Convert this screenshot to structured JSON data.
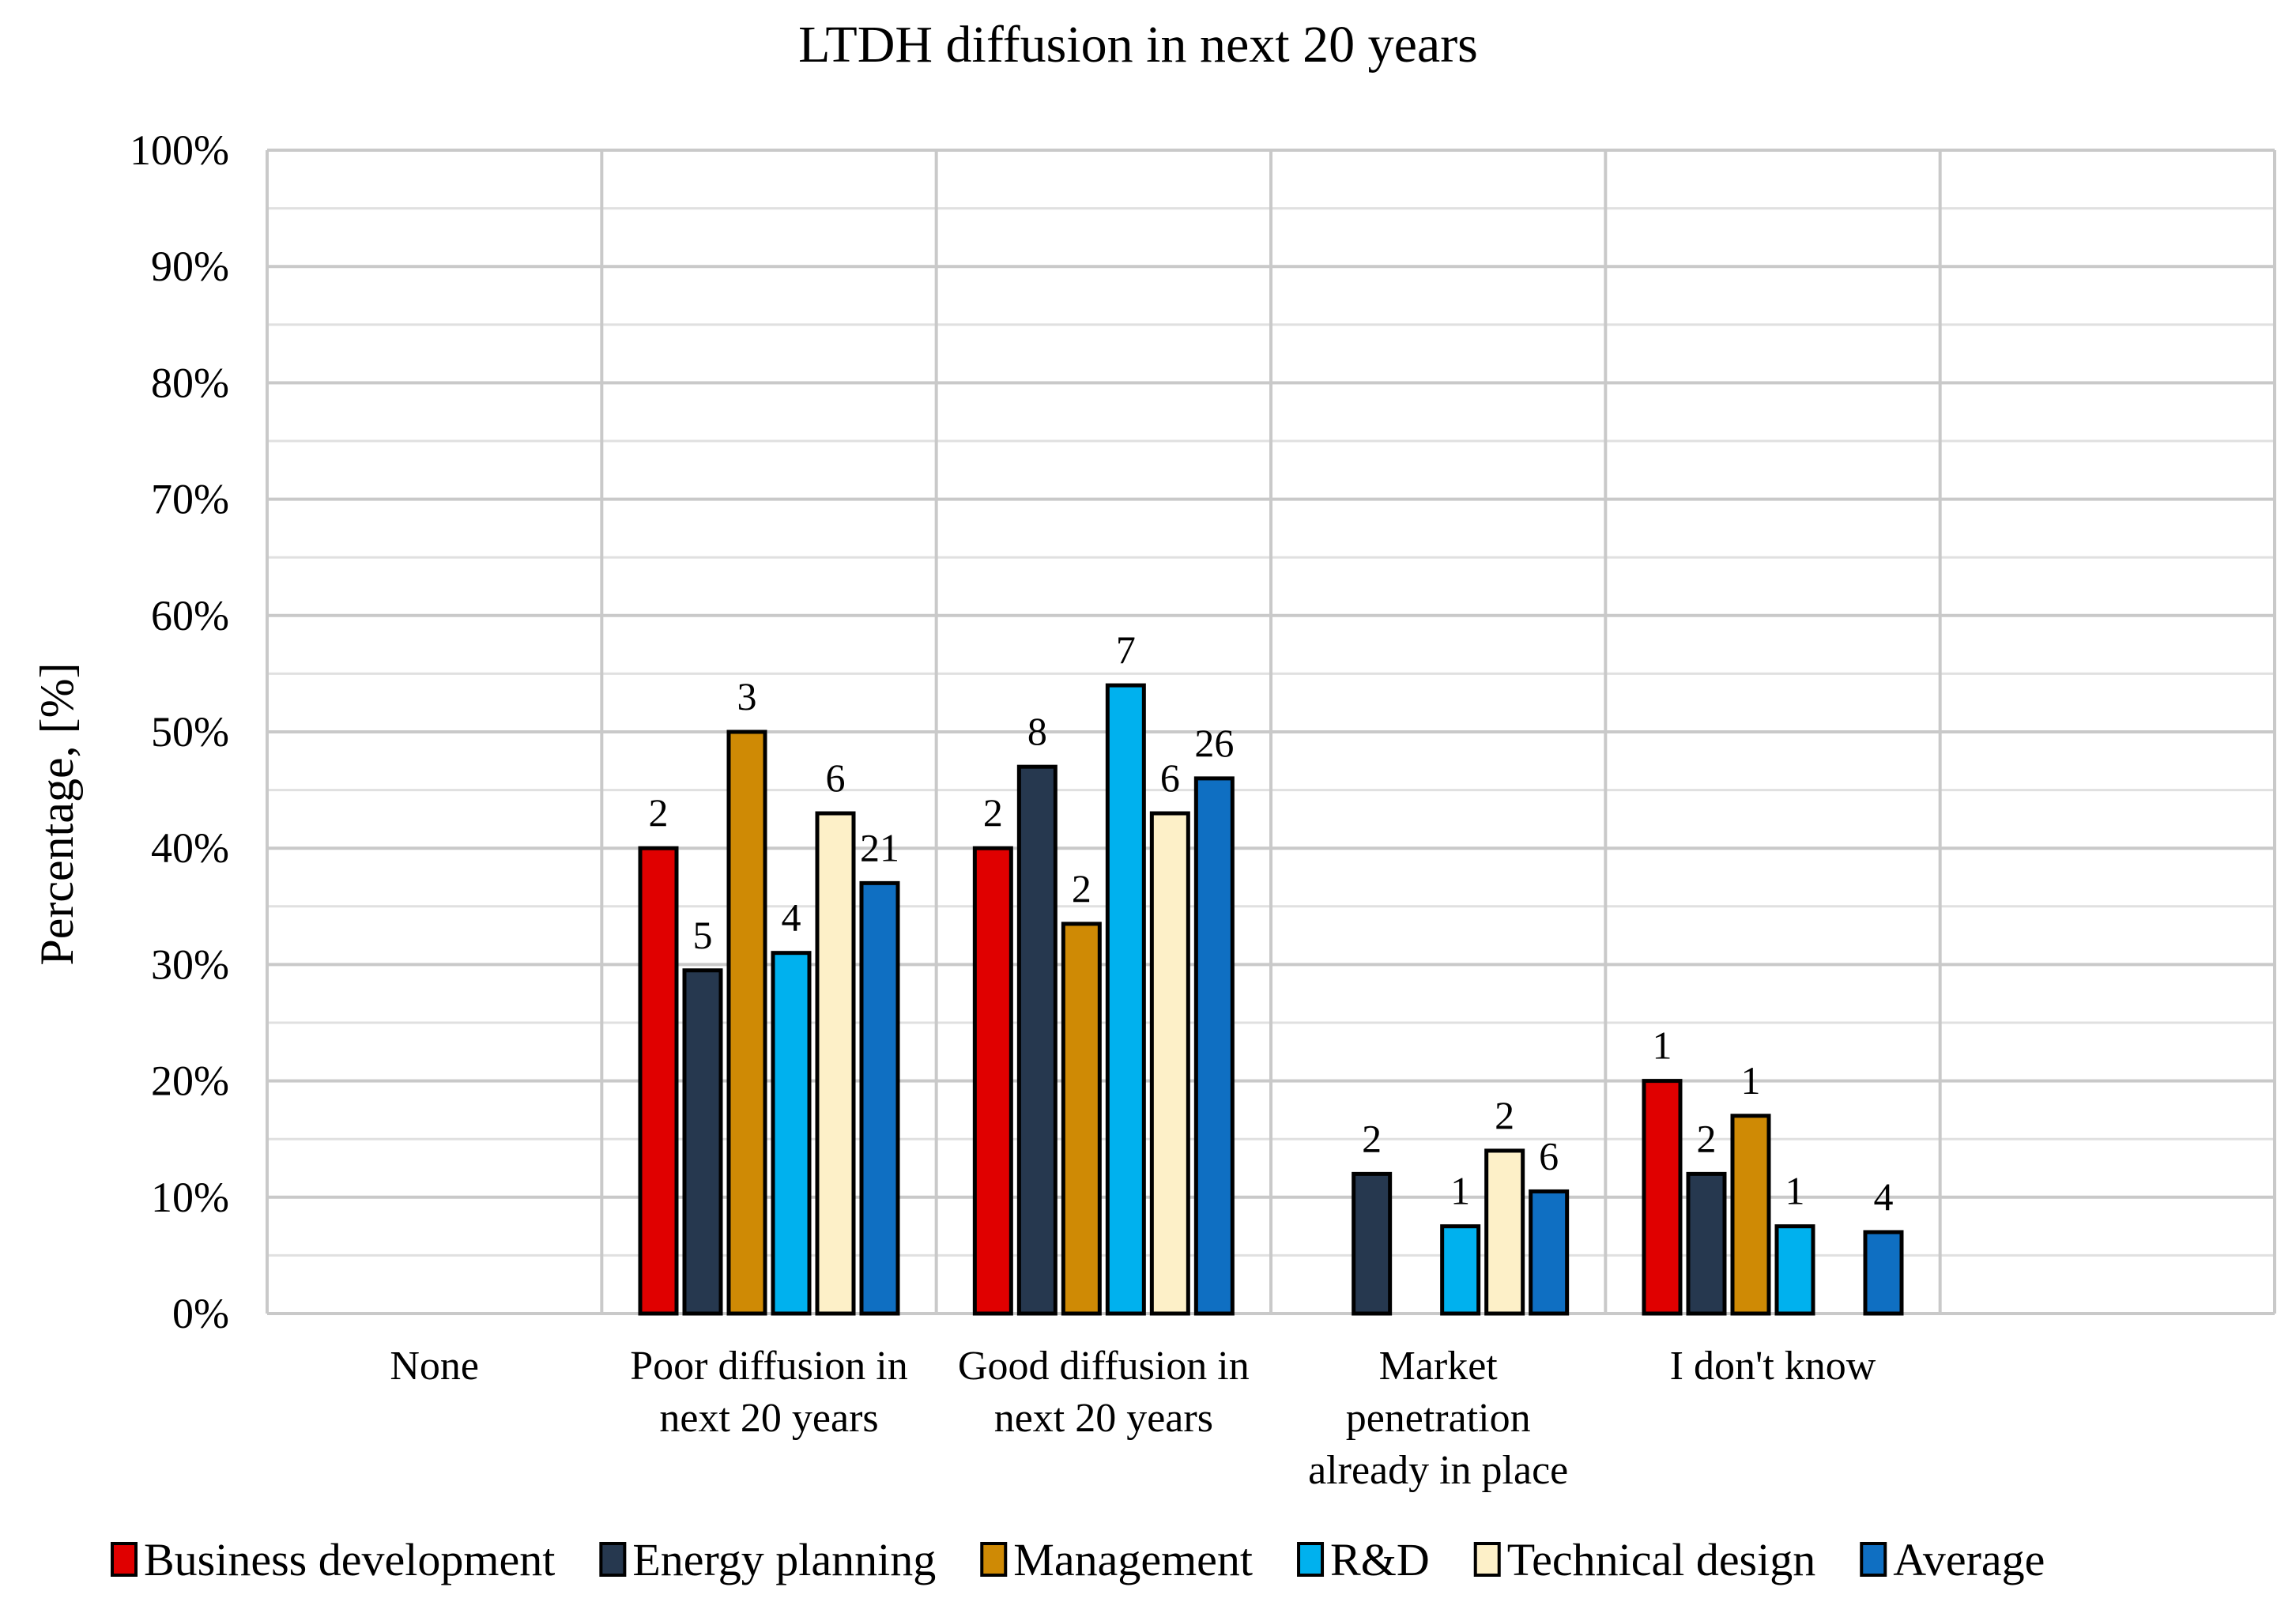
{
  "chart_data": {
    "type": "bar",
    "title": "LTDH  diffusion in next 20 years",
    "xlabel": "",
    "ylabel": "Percentage, [%]",
    "ylim": [
      0,
      100
    ],
    "yticks": [
      "0%",
      "10%",
      "20%",
      "30%",
      "40%",
      "50%",
      "60%",
      "70%",
      "80%",
      "90%",
      "100%"
    ],
    "minor_gridlines": true,
    "legend_position": "bottom",
    "categories": [
      [
        "None"
      ],
      [
        "Poor diffusion in",
        "next 20 years"
      ],
      [
        "Good diffusion in",
        "next 20 years"
      ],
      [
        "Market",
        "penetration",
        "already in place"
      ],
      [
        "I don't know"
      ],
      [
        ""
      ]
    ],
    "series": [
      {
        "name": "Business development",
        "color": "#e00000",
        "values": [
          null,
          40,
          40,
          null,
          20,
          null
        ],
        "labels": [
          null,
          "2",
          "2",
          null,
          "1",
          null
        ]
      },
      {
        "name": "Energy planning",
        "color": "#26384f",
        "values": [
          null,
          29.5,
          47,
          12,
          12,
          null
        ],
        "labels": [
          null,
          "5",
          "8",
          "2",
          "2",
          null
        ]
      },
      {
        "name": "Management",
        "color": "#cf8a05",
        "values": [
          null,
          50,
          33.5,
          null,
          17,
          null
        ],
        "labels": [
          null,
          "3",
          "2",
          null,
          "1",
          null
        ]
      },
      {
        "name": "R&D",
        "color": "#00b1ee",
        "values": [
          null,
          31,
          54,
          7.5,
          7.5,
          null
        ],
        "labels": [
          null,
          "4",
          "7",
          "1",
          "1",
          null
        ]
      },
      {
        "name": "Technical design",
        "color": "#fdf0c8",
        "values": [
          null,
          43,
          43,
          14,
          null,
          null
        ],
        "labels": [
          null,
          "6",
          "6",
          "2",
          null,
          null
        ]
      },
      {
        "name": "Average",
        "color": "#0f6fc2",
        "values": [
          null,
          37,
          46,
          10.5,
          7,
          null
        ],
        "labels": [
          null,
          "21",
          "26",
          "6",
          "4",
          null
        ]
      }
    ]
  }
}
